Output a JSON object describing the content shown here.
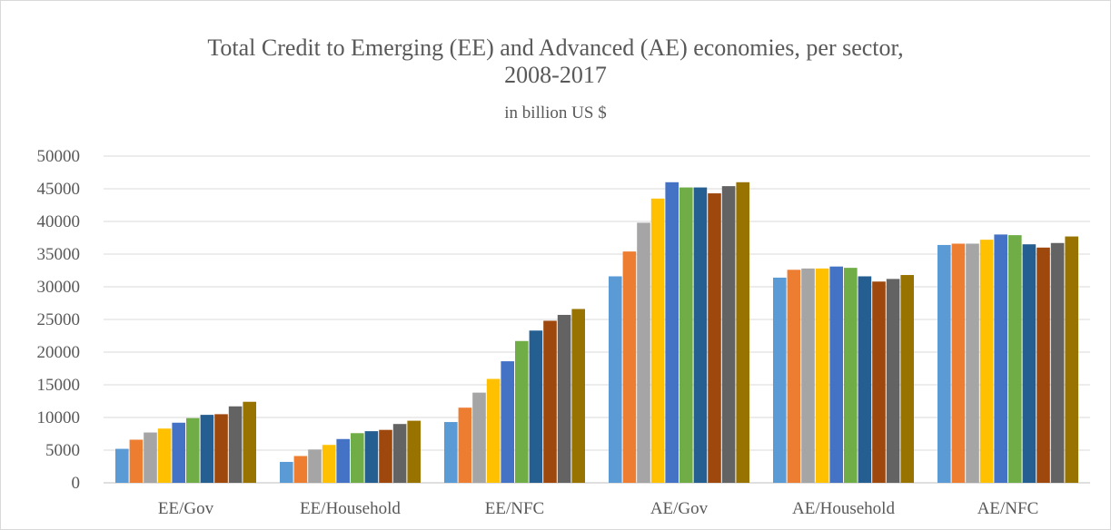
{
  "chart_data": {
    "type": "bar",
    "title": "Total Credit to Emerging (EE) and Advanced (AE) economies, per sector, 2008-2017",
    "title_lines": [
      "Total Credit to Emerging (EE) and Advanced (AE) economies, per sector,",
      "2008-2017"
    ],
    "subtitle": "in billion US $",
    "xlabel": "",
    "ylabel": "",
    "ylim": [
      0,
      50000
    ],
    "y_ticks": [
      "0",
      "5000",
      "10000",
      "15000",
      "20000",
      "25000",
      "30000",
      "35000",
      "40000",
      "45000",
      "50000"
    ],
    "grid": true,
    "legend": "none",
    "categories": [
      "EE/Gov",
      "EE/Household",
      "EE/NFC",
      "AE/Gov",
      "AE/Household",
      "AE/NFC"
    ],
    "series": [
      {
        "color": "#5b9bd5",
        "values": [
          5200,
          3200,
          9300,
          31600,
          31400,
          36400
        ]
      },
      {
        "color": "#ed7d31",
        "values": [
          6600,
          4100,
          11500,
          35400,
          32600,
          36600
        ]
      },
      {
        "color": "#a5a5a5",
        "values": [
          7700,
          5100,
          13800,
          39800,
          32800,
          36600
        ]
      },
      {
        "color": "#ffc000",
        "values": [
          8300,
          5800,
          15900,
          43500,
          32800,
          37200
        ]
      },
      {
        "color": "#4472c4",
        "values": [
          9200,
          6700,
          18600,
          46000,
          33100,
          38000
        ]
      },
      {
        "color": "#70ad47",
        "values": [
          9900,
          7600,
          21700,
          45200,
          32900,
          37900
        ]
      },
      {
        "color": "#255e91",
        "values": [
          10400,
          7900,
          23300,
          45200,
          31600,
          36500
        ]
      },
      {
        "color": "#9e480e",
        "values": [
          10500,
          8100,
          24800,
          44300,
          30800,
          36000
        ]
      },
      {
        "color": "#636363",
        "values": [
          11700,
          9000,
          25700,
          45400,
          31200,
          36700
        ]
      },
      {
        "color": "#997300",
        "values": [
          12400,
          9500,
          26600,
          46000,
          31800,
          37700
        ]
      }
    ]
  }
}
